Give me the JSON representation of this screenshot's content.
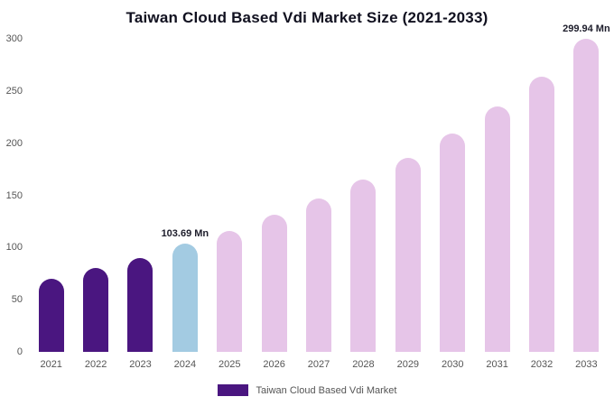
{
  "title": "Taiwan Cloud Based Vdi Market Size (2021-2033)",
  "legend": {
    "label": "Taiwan Cloud Based Vdi Market"
  },
  "colors": {
    "historical": "#4a1680",
    "current": "#a3cbe2",
    "forecast": "#e6c5e8"
  },
  "chart_data": {
    "type": "bar",
    "title": "Taiwan Cloud Based Vdi Market Size (2021-2033)",
    "categories": [
      "2021",
      "2022",
      "2023",
      "2024",
      "2025",
      "2026",
      "2027",
      "2028",
      "2029",
      "2030",
      "2031",
      "2032",
      "2033"
    ],
    "values": [
      70,
      80,
      90,
      103.69,
      116,
      131,
      147,
      165,
      186,
      209,
      235,
      264,
      299.94
    ],
    "bar_roles": [
      "historical",
      "historical",
      "historical",
      "current",
      "forecast",
      "forecast",
      "forecast",
      "forecast",
      "forecast",
      "forecast",
      "forecast",
      "forecast",
      "forecast"
    ],
    "annotations": [
      {
        "index": 3,
        "text": "103.69 Mn"
      },
      {
        "index": 12,
        "text": "299.94 Mn"
      }
    ],
    "xlabel": "",
    "ylabel": "",
    "ylim": [
      0,
      300
    ],
    "yticks": [
      0,
      50,
      100,
      150,
      200,
      250,
      300
    ],
    "grid": false,
    "legend_position": "bottom",
    "legend_entries": [
      "Taiwan Cloud Based Vdi Market"
    ]
  }
}
